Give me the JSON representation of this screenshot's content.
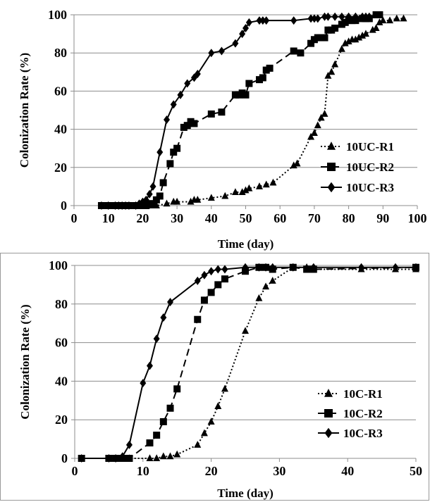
{
  "chart_data": [
    {
      "type": "line",
      "xlabel": "Time (day)",
      "ylabel": "Colonization Rate (%)",
      "xlim": [
        0,
        100
      ],
      "ylim": [
        0,
        100
      ],
      "xticks": [
        "0",
        "10",
        "20",
        "30",
        "40",
        "50",
        "60",
        "70",
        "80",
        "90",
        "100"
      ],
      "yticks": [
        "0",
        "20",
        "40",
        "60",
        "80",
        "100"
      ],
      "grid": "horizontal",
      "legend_placement": "bottom-right",
      "series": [
        {
          "name": "10UC-R1",
          "marker": "triangle",
          "line": "dotted",
          "points": [
            [
              8,
              0
            ],
            [
              10,
              0
            ],
            [
              12,
              0
            ],
            [
              13,
              0
            ],
            [
              14,
              0
            ],
            [
              15,
              0
            ],
            [
              16,
              0
            ],
            [
              18,
              0
            ],
            [
              19,
              0
            ],
            [
              20,
              0
            ],
            [
              21,
              0
            ],
            [
              22,
              0
            ],
            [
              23,
              0
            ],
            [
              24,
              0
            ],
            [
              27,
              1
            ],
            [
              29,
              2
            ],
            [
              30,
              2
            ],
            [
              34,
              2
            ],
            [
              35,
              3
            ],
            [
              36,
              3
            ],
            [
              40,
              4
            ],
            [
              44,
              5
            ],
            [
              47,
              7
            ],
            [
              49,
              7
            ],
            [
              50,
              8
            ],
            [
              51,
              9
            ],
            [
              54,
              10
            ],
            [
              56,
              11
            ],
            [
              58,
              12
            ],
            [
              64,
              21
            ],
            [
              65,
              22
            ],
            [
              69,
              36
            ],
            [
              70,
              38
            ],
            [
              71,
              42
            ],
            [
              72,
              46
            ],
            [
              73,
              48
            ],
            [
              74,
              68
            ],
            [
              75,
              70
            ],
            [
              76,
              74
            ],
            [
              78,
              82
            ],
            [
              79,
              85
            ],
            [
              80,
              86
            ],
            [
              81,
              87
            ],
            [
              82,
              87
            ],
            [
              83,
              88
            ],
            [
              84,
              89
            ],
            [
              85,
              90
            ],
            [
              87,
              92
            ],
            [
              88,
              93
            ],
            [
              89,
              96
            ],
            [
              90,
              97
            ],
            [
              92,
              97
            ],
            [
              94,
              98
            ],
            [
              96,
              98
            ]
          ]
        },
        {
          "name": "10UC-R2",
          "marker": "square",
          "line": "dashed",
          "points": [
            [
              8,
              0
            ],
            [
              10,
              0
            ],
            [
              12,
              0
            ],
            [
              13,
              0
            ],
            [
              14,
              0
            ],
            [
              15,
              0
            ],
            [
              16,
              0
            ],
            [
              18,
              0
            ],
            [
              19,
              0
            ],
            [
              20,
              0
            ],
            [
              21,
              0
            ],
            [
              22,
              1
            ],
            [
              23,
              1
            ],
            [
              24,
              3
            ],
            [
              25,
              5
            ],
            [
              26,
              12
            ],
            [
              28,
              22
            ],
            [
              29,
              28
            ],
            [
              30,
              30
            ],
            [
              32,
              41
            ],
            [
              33,
              42
            ],
            [
              34,
              44
            ],
            [
              35,
              43
            ],
            [
              40,
              48
            ],
            [
              43,
              49
            ],
            [
              47,
              58
            ],
            [
              48,
              58
            ],
            [
              49,
              59
            ],
            [
              50,
              58
            ],
            [
              51,
              64
            ],
            [
              54,
              66
            ],
            [
              55,
              67
            ],
            [
              56,
              71
            ],
            [
              57,
              72
            ],
            [
              64,
              81
            ],
            [
              66,
              80
            ],
            [
              69,
              85
            ],
            [
              70,
              87
            ],
            [
              71,
              88
            ],
            [
              72,
              88
            ],
            [
              73,
              88
            ],
            [
              74,
              92
            ],
            [
              75,
              92
            ],
            [
              76,
              93
            ],
            [
              78,
              95
            ],
            [
              79,
              96
            ],
            [
              80,
              97
            ],
            [
              81,
              97
            ],
            [
              82,
              97
            ],
            [
              84,
              98
            ],
            [
              85,
              98
            ],
            [
              86,
              98
            ],
            [
              88,
              100
            ],
            [
              89,
              100
            ]
          ]
        },
        {
          "name": "10UC-R3",
          "marker": "diamond",
          "line": "solid",
          "points": [
            [
              8,
              0
            ],
            [
              10,
              0
            ],
            [
              12,
              0
            ],
            [
              13,
              0
            ],
            [
              14,
              0
            ],
            [
              15,
              0
            ],
            [
              16,
              0
            ],
            [
              18,
              0
            ],
            [
              19,
              1
            ],
            [
              20,
              2
            ],
            [
              21,
              3
            ],
            [
              22,
              6
            ],
            [
              23,
              10
            ],
            [
              25,
              28
            ],
            [
              27,
              45
            ],
            [
              29,
              53
            ],
            [
              31,
              58
            ],
            [
              33,
              64
            ],
            [
              35,
              67
            ],
            [
              36,
              69
            ],
            [
              40,
              80
            ],
            [
              43,
              81
            ],
            [
              47,
              85
            ],
            [
              49,
              90
            ],
            [
              50,
              93
            ],
            [
              51,
              96
            ],
            [
              54,
              97
            ],
            [
              55,
              97
            ],
            [
              56,
              97
            ],
            [
              64,
              97
            ],
            [
              69,
              98
            ],
            [
              70,
              98
            ],
            [
              71,
              98
            ],
            [
              73,
              99
            ],
            [
              74,
              99
            ],
            [
              76,
              99
            ],
            [
              78,
              99
            ],
            [
              80,
              99
            ],
            [
              82,
              99
            ],
            [
              84,
              99
            ],
            [
              85,
              99
            ],
            [
              86,
              99
            ]
          ]
        }
      ]
    },
    {
      "type": "line",
      "xlabel": "Time (day)",
      "ylabel": "Colonization Rate (%)",
      "xlim": [
        0,
        50
      ],
      "ylim": [
        0,
        100
      ],
      "xticks": [
        "0",
        "10",
        "20",
        "30",
        "40",
        "50"
      ],
      "yticks": [
        "0",
        "20",
        "40",
        "60",
        "80",
        "100"
      ],
      "grid": "horizontal",
      "legend_placement": "bottom-right",
      "series": [
        {
          "name": "10C-R1",
          "marker": "triangle",
          "line": "dotted",
          "points": [
            [
              1,
              0
            ],
            [
              5,
              0
            ],
            [
              6,
              0
            ],
            [
              7,
              0
            ],
            [
              8,
              0
            ],
            [
              11,
              0
            ],
            [
              12,
              0
            ],
            [
              13,
              1
            ],
            [
              14,
              1
            ],
            [
              15,
              2
            ],
            [
              18,
              7
            ],
            [
              19,
              13
            ],
            [
              20,
              19
            ],
            [
              21,
              27
            ],
            [
              22,
              36
            ],
            [
              25,
              66
            ],
            [
              27,
              83
            ],
            [
              28,
              89
            ],
            [
              29,
              92
            ],
            [
              32,
              99
            ],
            [
              34,
              99
            ],
            [
              35,
              98
            ],
            [
              42,
              98
            ],
            [
              47,
              98
            ],
            [
              50,
              98
            ]
          ]
        },
        {
          "name": "10C-R2",
          "marker": "square",
          "line": "dashed",
          "points": [
            [
              1,
              0
            ],
            [
              5,
              0
            ],
            [
              6,
              0
            ],
            [
              7,
              0
            ],
            [
              8,
              0
            ],
            [
              11,
              8
            ],
            [
              12,
              12
            ],
            [
              13,
              19
            ],
            [
              14,
              26
            ],
            [
              15,
              36
            ],
            [
              18,
              72
            ],
            [
              19,
              82
            ],
            [
              20,
              86
            ],
            [
              21,
              90
            ],
            [
              22,
              93
            ],
            [
              25,
              97
            ],
            [
              27,
              99
            ],
            [
              28,
              99
            ],
            [
              29,
              98
            ],
            [
              32,
              99
            ],
            [
              34,
              98
            ],
            [
              35,
              98
            ],
            [
              50,
              99
            ]
          ]
        },
        {
          "name": "10C-R3",
          "marker": "diamond",
          "line": "solid",
          "points": [
            [
              1,
              0
            ],
            [
              5,
              0
            ],
            [
              6,
              0
            ],
            [
              7,
              1
            ],
            [
              8,
              7
            ],
            [
              10,
              39
            ],
            [
              11,
              48
            ],
            [
              12,
              62
            ],
            [
              13,
              73
            ],
            [
              14,
              81
            ],
            [
              18,
              92
            ],
            [
              19,
              95
            ],
            [
              20,
              97
            ],
            [
              21,
              98
            ],
            [
              22,
              98
            ],
            [
              25,
              99
            ],
            [
              27,
              99
            ],
            [
              28,
              99
            ],
            [
              29,
              99
            ],
            [
              32,
              99
            ],
            [
              35,
              99
            ],
            [
              42,
              99
            ],
            [
              47,
              99
            ],
            [
              50,
              99
            ]
          ]
        }
      ]
    }
  ]
}
